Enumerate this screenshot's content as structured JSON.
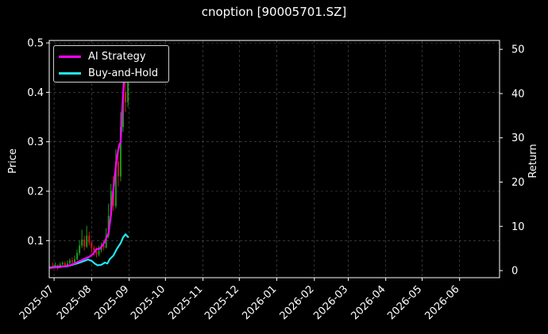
{
  "chart_data": {
    "type": "line",
    "title": "cnoption [90005701.SZ]",
    "ylabel": "Price",
    "y2label": "Return",
    "ylim": [
      0.025,
      0.505
    ],
    "y2lim": [
      -1.6,
      52.0
    ],
    "yticks": [
      "0.1",
      "0.2",
      "0.3",
      "0.4",
      "0.5"
    ],
    "y2ticks": [
      "0",
      "10",
      "20",
      "30",
      "40",
      "50"
    ],
    "xticks": [
      "2025-07",
      "2025-08",
      "2025-09",
      "2025-10",
      "2025-11",
      "2025-12",
      "2026-01",
      "2026-02",
      "2026-03",
      "2026-04",
      "2026-05",
      "2026-06"
    ],
    "grid": true,
    "legend_position": "top-left",
    "legend": [
      {
        "label": "AI Strategy",
        "color": "#ff00ff"
      },
      {
        "label": "Buy-and-Hold",
        "color": "#22e5f0"
      }
    ],
    "xdomain": [
      "2025-06-27",
      "2026-07-04"
    ],
    "series": [
      {
        "name": "AI Strategy",
        "axis": "right",
        "color": "#ff00ff",
        "points": [
          [
            "2025-06-28",
            0.6
          ],
          [
            "2025-07-02",
            0.7
          ],
          [
            "2025-07-06",
            0.8
          ],
          [
            "2025-07-10",
            1.0
          ],
          [
            "2025-07-14",
            1.2
          ],
          [
            "2025-07-17",
            1.5
          ],
          [
            "2025-07-20",
            1.9
          ],
          [
            "2025-07-24",
            2.4
          ],
          [
            "2025-07-27",
            2.8
          ],
          [
            "2025-07-30",
            3.1
          ],
          [
            "2025-08-02",
            3.7
          ],
          [
            "2025-08-05",
            4.8
          ],
          [
            "2025-08-08",
            5.0
          ],
          [
            "2025-08-11",
            6.1
          ],
          [
            "2025-08-13",
            7.2
          ],
          [
            "2025-08-15",
            8.5
          ],
          [
            "2025-08-17",
            12.5
          ],
          [
            "2025-08-18",
            16.0
          ],
          [
            "2025-08-20",
            21.0
          ],
          [
            "2025-08-22",
            26.0
          ],
          [
            "2025-08-24",
            28.5
          ],
          [
            "2025-08-25",
            29.0
          ],
          [
            "2025-08-26",
            35.0
          ],
          [
            "2025-08-27",
            40.0
          ],
          [
            "2025-08-28",
            43.5
          ],
          [
            "2025-08-29",
            45.0
          ]
        ]
      },
      {
        "name": "Buy-and-Hold",
        "axis": "right",
        "color": "#22e5f0",
        "points": [
          [
            "2025-06-28",
            0.7
          ],
          [
            "2025-07-03",
            0.8
          ],
          [
            "2025-07-07",
            0.9
          ],
          [
            "2025-07-12",
            1.0
          ],
          [
            "2025-07-16",
            1.3
          ],
          [
            "2025-07-21",
            1.7
          ],
          [
            "2025-07-26",
            2.2
          ],
          [
            "2025-07-29",
            2.5
          ],
          [
            "2025-08-01",
            2.2
          ],
          [
            "2025-08-04",
            1.5
          ],
          [
            "2025-08-06",
            1.2
          ],
          [
            "2025-08-09",
            1.3
          ],
          [
            "2025-08-12",
            1.8
          ],
          [
            "2025-08-14",
            1.6
          ],
          [
            "2025-08-16",
            2.6
          ],
          [
            "2025-08-19",
            3.4
          ],
          [
            "2025-08-22",
            5.0
          ],
          [
            "2025-08-25",
            6.2
          ],
          [
            "2025-08-27",
            7.5
          ],
          [
            "2025-08-29",
            8.2
          ],
          [
            "2025-08-31",
            7.6
          ]
        ]
      }
    ],
    "candlesticks": {
      "axis": "left",
      "up_color": "#1a9a1a",
      "down_color": "#cc1a1a",
      "items": [
        [
          "2025-06-30",
          0.05,
          0.048,
          0.056,
          0.045
        ],
        [
          "2025-07-02",
          0.048,
          0.05,
          0.056,
          0.046
        ],
        [
          "2025-07-04",
          0.05,
          0.046,
          0.052,
          0.04
        ],
        [
          "2025-07-06",
          0.046,
          0.052,
          0.056,
          0.044
        ],
        [
          "2025-07-08",
          0.052,
          0.055,
          0.058,
          0.049
        ],
        [
          "2025-07-10",
          0.055,
          0.05,
          0.058,
          0.046
        ],
        [
          "2025-07-12",
          0.05,
          0.054,
          0.06,
          0.048
        ],
        [
          "2025-07-14",
          0.054,
          0.06,
          0.064,
          0.052
        ],
        [
          "2025-07-16",
          0.06,
          0.056,
          0.066,
          0.052
        ],
        [
          "2025-07-18",
          0.056,
          0.062,
          0.07,
          0.054
        ],
        [
          "2025-07-20",
          0.062,
          0.075,
          0.082,
          0.06
        ],
        [
          "2025-07-22",
          0.075,
          0.09,
          0.1,
          0.07
        ],
        [
          "2025-07-24",
          0.09,
          0.102,
          0.122,
          0.085
        ],
        [
          "2025-07-26",
          0.102,
          0.088,
          0.11,
          0.08
        ],
        [
          "2025-07-28",
          0.088,
          0.11,
          0.13,
          0.085
        ],
        [
          "2025-07-30",
          0.11,
          0.096,
          0.118,
          0.09
        ],
        [
          "2025-08-01",
          0.096,
          0.085,
          0.1,
          0.075
        ],
        [
          "2025-08-03",
          0.085,
          0.078,
          0.09,
          0.07
        ],
        [
          "2025-08-05",
          0.078,
          0.072,
          0.086,
          0.066
        ],
        [
          "2025-08-07",
          0.072,
          0.08,
          0.09,
          0.068
        ],
        [
          "2025-08-09",
          0.08,
          0.09,
          0.096,
          0.076
        ],
        [
          "2025-08-11",
          0.09,
          0.086,
          0.1,
          0.08
        ],
        [
          "2025-08-13",
          0.086,
          0.11,
          0.125,
          0.084
        ],
        [
          "2025-08-15",
          0.11,
          0.15,
          0.175,
          0.105
        ],
        [
          "2025-08-17",
          0.15,
          0.2,
          0.215,
          0.14
        ],
        [
          "2025-08-19",
          0.2,
          0.17,
          0.23,
          0.16
        ],
        [
          "2025-08-21",
          0.17,
          0.26,
          0.285,
          0.165
        ],
        [
          "2025-08-23",
          0.26,
          0.23,
          0.29,
          0.21
        ],
        [
          "2025-08-25",
          0.23,
          0.33,
          0.36,
          0.22
        ],
        [
          "2025-08-27",
          0.33,
          0.4,
          0.43,
          0.32
        ],
        [
          "2025-08-29",
          0.4,
          0.38,
          0.44,
          0.36
        ],
        [
          "2025-08-31",
          0.38,
          0.42,
          0.45,
          0.37
        ]
      ]
    }
  }
}
